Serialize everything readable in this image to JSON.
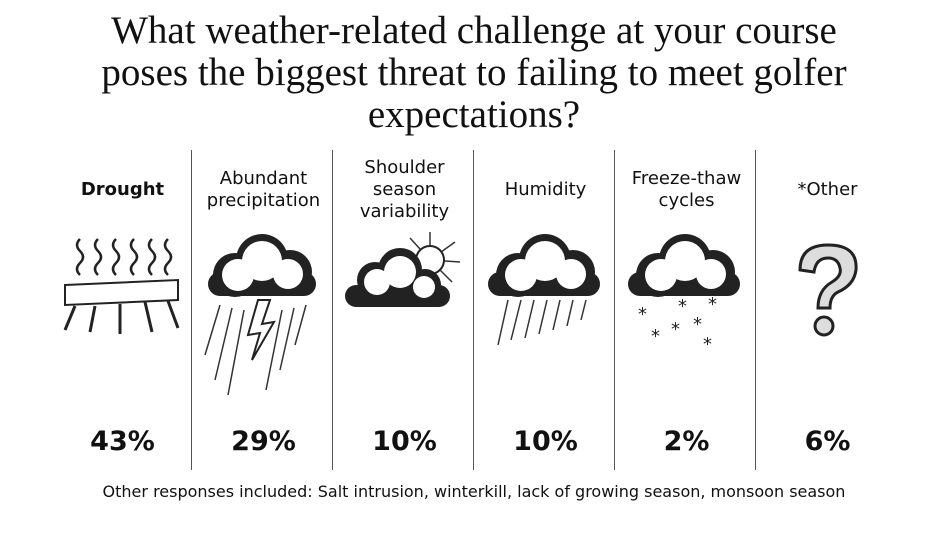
{
  "chart_data": {
    "type": "pictogram",
    "title": "What weather-related challenge at your course poses the biggest threat to failing to meet golfer expectations?",
    "categories": [
      "Drought",
      "Abundant precipitation",
      "Shoulder season variability",
      "Humidity",
      "Freeze-thaw cycles",
      "*Other"
    ],
    "values": [
      43,
      29,
      10,
      10,
      2,
      6
    ],
    "value_labels": [
      "43%",
      "29%",
      "10%",
      "10%",
      "2%",
      "6%"
    ],
    "note": "Other responses included: Salt intrusion, winterkill, lack of growing season, monsoon season"
  }
}
